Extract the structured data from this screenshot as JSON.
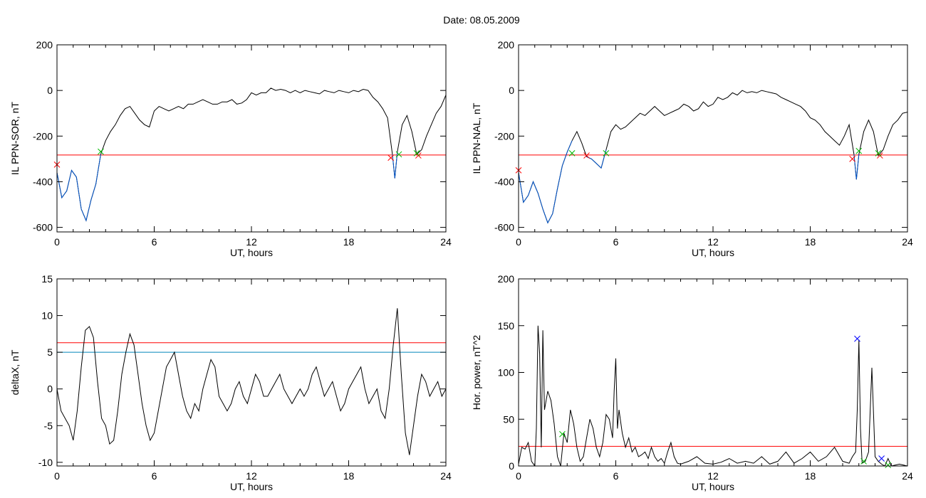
{
  "figure": {
    "title": "Date:  08.05.2009"
  },
  "chart_data": [
    {
      "id": "p1",
      "type": "line",
      "xlabel": "UT, hours",
      "ylabel": "IL PPN-SOR, nT",
      "xlim": [
        0,
        24
      ],
      "ylim": [
        -620,
        200
      ],
      "xticks": [
        0,
        6,
        12,
        18,
        24
      ],
      "yticks": [
        -600,
        -400,
        -200,
        0,
        200
      ],
      "threshold_lines": [
        {
          "y": -283,
          "color": "#ff0000"
        }
      ],
      "series": [
        {
          "color": "#000000",
          "x": [
            0,
            0.3,
            0.6,
            0.9,
            1.2,
            1.5,
            1.8,
            2.1,
            2.4,
            2.7,
            3.0,
            3.3,
            3.6,
            3.9,
            4.2,
            4.5,
            4.8,
            5.1,
            5.4,
            5.7,
            6.0,
            6.3,
            6.6,
            6.9,
            7.2,
            7.5,
            7.8,
            8.1,
            8.4,
            8.7,
            9.0,
            9.3,
            9.6,
            9.9,
            10.2,
            10.5,
            10.8,
            11.1,
            11.4,
            11.7,
            12.0,
            12.3,
            12.6,
            12.9,
            13.2,
            13.5,
            13.8,
            14.1,
            14.4,
            14.7,
            15.0,
            15.3,
            15.6,
            15.9,
            16.2,
            16.5,
            16.8,
            17.1,
            17.4,
            17.7,
            18.0,
            18.3,
            18.6,
            18.9,
            19.2,
            19.5,
            19.8,
            20.1,
            20.4,
            20.7,
            20.85,
            21.0,
            21.3,
            21.6,
            21.9,
            22.2,
            22.5,
            22.8,
            23.1,
            23.4,
            23.7,
            24.0
          ],
          "y": [
            -360,
            -470,
            -440,
            -350,
            -380,
            -520,
            -570,
            -480,
            -410,
            -280,
            -220,
            -180,
            -150,
            -110,
            -80,
            -70,
            -100,
            -130,
            -150,
            -160,
            -90,
            -70,
            -80,
            -90,
            -80,
            -70,
            -80,
            -60,
            -60,
            -50,
            -40,
            -50,
            -60,
            -60,
            -50,
            -50,
            -40,
            -60,
            -55,
            -40,
            -10,
            -20,
            -10,
            -10,
            10,
            0,
            5,
            0,
            -10,
            0,
            -10,
            0,
            -5,
            -10,
            -15,
            0,
            -5,
            -10,
            0,
            -5,
            -10,
            0,
            -5,
            5,
            0,
            -30,
            -50,
            -80,
            -120,
            -280,
            -385,
            -270,
            -150,
            -110,
            -180,
            -280,
            -260,
            -200,
            -150,
            -100,
            -70,
            -20
          ]
        },
        {
          "color": "#0055cc",
          "x": [
            0,
            0.3,
            0.6,
            0.9,
            1.2,
            1.5,
            1.8,
            2.1,
            2.4,
            2.7
          ],
          "y": [
            -360,
            -470,
            -440,
            -350,
            -380,
            -520,
            -570,
            -480,
            -410,
            -280
          ]
        },
        {
          "color": "#0055cc",
          "x": [
            20.7,
            20.85,
            21.0
          ],
          "y": [
            -280,
            -385,
            -270
          ]
        }
      ],
      "markers": [
        {
          "x": 0.0,
          "y": -325,
          "color": "#ff0000"
        },
        {
          "x": 2.7,
          "y": -268,
          "color": "#00bb00"
        },
        {
          "x": 20.6,
          "y": -295,
          "color": "#ff0000"
        },
        {
          "x": 21.1,
          "y": -280,
          "color": "#00bb00"
        },
        {
          "x": 22.3,
          "y": -285,
          "color": "#ff0000"
        },
        {
          "x": 22.2,
          "y": -275,
          "color": "#00bb00"
        }
      ]
    },
    {
      "id": "p2",
      "type": "line",
      "xlabel": "UT, hours",
      "ylabel": "IL PPN-NAL, nT",
      "xlim": [
        0,
        24
      ],
      "ylim": [
        -620,
        200
      ],
      "xticks": [
        0,
        6,
        12,
        18,
        24
      ],
      "yticks": [
        -600,
        -400,
        -200,
        0,
        200
      ],
      "threshold_lines": [
        {
          "y": -283,
          "color": "#ff0000"
        }
      ],
      "series": [
        {
          "color": "#000000",
          "x": [
            0,
            0.3,
            0.6,
            0.9,
            1.2,
            1.5,
            1.8,
            2.1,
            2.4,
            2.7,
            3.0,
            3.3,
            3.6,
            3.9,
            4.2,
            4.5,
            4.8,
            5.1,
            5.4,
            5.7,
            6.0,
            6.3,
            6.6,
            6.9,
            7.2,
            7.5,
            7.8,
            8.1,
            8.4,
            8.7,
            9.0,
            9.3,
            9.6,
            9.9,
            10.2,
            10.5,
            10.8,
            11.1,
            11.4,
            11.7,
            12.0,
            12.3,
            12.6,
            12.9,
            13.2,
            13.5,
            13.8,
            14.1,
            14.4,
            14.7,
            15.0,
            15.3,
            15.6,
            15.9,
            16.2,
            16.5,
            16.8,
            17.1,
            17.4,
            17.7,
            18.0,
            18.3,
            18.6,
            18.9,
            19.2,
            19.5,
            19.8,
            20.1,
            20.4,
            20.7,
            20.85,
            21.0,
            21.3,
            21.6,
            21.9,
            22.2,
            22.5,
            22.8,
            23.1,
            23.4,
            23.7,
            24.0
          ],
          "y": [
            -360,
            -490,
            -460,
            -400,
            -450,
            -520,
            -580,
            -540,
            -430,
            -330,
            -270,
            -220,
            -180,
            -230,
            -290,
            -300,
            -320,
            -340,
            -260,
            -180,
            -150,
            -170,
            -160,
            -140,
            -120,
            -100,
            -110,
            -90,
            -70,
            -90,
            -110,
            -100,
            -90,
            -80,
            -60,
            -70,
            -90,
            -80,
            -50,
            -70,
            -60,
            -30,
            -40,
            -30,
            -10,
            -20,
            0,
            -10,
            -5,
            -10,
            0,
            -5,
            -10,
            -15,
            -30,
            -40,
            -50,
            -60,
            -70,
            -90,
            -120,
            -130,
            -150,
            -180,
            -200,
            -220,
            -240,
            -200,
            -150,
            -280,
            -390,
            -280,
            -180,
            -130,
            -180,
            -285,
            -260,
            -200,
            -150,
            -130,
            -100,
            -95
          ]
        },
        {
          "color": "#0055cc",
          "x": [
            0,
            0.3,
            0.6,
            0.9,
            1.2,
            1.5,
            1.8,
            2.1,
            2.4,
            2.7,
            3.0,
            3.3
          ],
          "y": [
            -360,
            -490,
            -460,
            -400,
            -450,
            -520,
            -580,
            -540,
            -430,
            -330,
            -270,
            -220
          ]
        },
        {
          "color": "#0055cc",
          "x": [
            4.2,
            4.5,
            4.8,
            5.1,
            5.4
          ],
          "y": [
            -290,
            -300,
            -320,
            -340,
            -260
          ]
        },
        {
          "color": "#0055cc",
          "x": [
            20.7,
            20.85,
            21.0
          ],
          "y": [
            -280,
            -390,
            -280
          ]
        }
      ],
      "markers": [
        {
          "x": 0.0,
          "y": -350,
          "color": "#ff0000"
        },
        {
          "x": 3.3,
          "y": -275,
          "color": "#00bb00"
        },
        {
          "x": 4.2,
          "y": -285,
          "color": "#ff0000"
        },
        {
          "x": 5.4,
          "y": -275,
          "color": "#00bb00"
        },
        {
          "x": 20.6,
          "y": -300,
          "color": "#ff0000"
        },
        {
          "x": 21.0,
          "y": -265,
          "color": "#00bb00"
        },
        {
          "x": 22.3,
          "y": -285,
          "color": "#ff0000"
        },
        {
          "x": 22.2,
          "y": -275,
          "color": "#00bb00"
        }
      ]
    },
    {
      "id": "p3",
      "type": "line",
      "xlabel": "UT, hours",
      "ylabel": "deltaX, nT",
      "xlim": [
        0,
        24
      ],
      "ylim": [
        -10.5,
        15
      ],
      "xticks": [
        0,
        6,
        12,
        18,
        24
      ],
      "yticks": [
        -10,
        -5,
        0,
        5,
        10,
        15
      ],
      "threshold_lines": [
        {
          "y": 6.3,
          "color": "#ff0000"
        },
        {
          "y": 5.0,
          "color": "#0088bb"
        }
      ],
      "series": [
        {
          "color": "#000000",
          "x": [
            0,
            0.25,
            0.5,
            0.75,
            1.0,
            1.25,
            1.5,
            1.75,
            2.0,
            2.25,
            2.5,
            2.75,
            3.0,
            3.25,
            3.5,
            3.75,
            4.0,
            4.25,
            4.5,
            4.75,
            5.0,
            5.25,
            5.5,
            5.75,
            6.0,
            6.25,
            6.5,
            6.75,
            7.0,
            7.25,
            7.5,
            7.75,
            8.0,
            8.25,
            8.5,
            8.75,
            9.0,
            9.25,
            9.5,
            9.75,
            10.0,
            10.25,
            10.5,
            10.75,
            11.0,
            11.25,
            11.5,
            11.75,
            12.0,
            12.25,
            12.5,
            12.75,
            13.0,
            13.25,
            13.5,
            13.75,
            14.0,
            14.25,
            14.5,
            14.75,
            15.0,
            15.25,
            15.5,
            15.75,
            16.0,
            16.25,
            16.5,
            16.75,
            17.0,
            17.25,
            17.5,
            17.75,
            18.0,
            18.25,
            18.5,
            18.75,
            19.0,
            19.25,
            19.5,
            19.75,
            20.0,
            20.25,
            20.5,
            20.75,
            21.0,
            21.25,
            21.5,
            21.75,
            22.0,
            22.25,
            22.5,
            22.75,
            23.0,
            23.25,
            23.5,
            23.75,
            24.0
          ],
          "y": [
            0,
            -3,
            -4,
            -5,
            -7,
            -3,
            3,
            8,
            8.5,
            7,
            1,
            -4,
            -5,
            -7.5,
            -7,
            -3,
            2,
            5,
            7.5,
            6,
            2,
            -2,
            -5,
            -7,
            -6,
            -3,
            0,
            3,
            4,
            5,
            2,
            -1,
            -3,
            -4,
            -2,
            -3,
            0,
            2,
            4,
            3,
            -1,
            -2,
            -3,
            -2,
            0,
            1,
            -1,
            -2,
            0,
            2,
            1,
            -1,
            -1,
            0,
            1,
            2,
            0,
            -1,
            -2,
            -1,
            0,
            -1,
            0,
            2,
            3,
            1,
            -1,
            0,
            1,
            -1,
            -3,
            -2,
            0,
            1,
            2,
            3,
            0,
            -2,
            -1,
            0,
            -3,
            -4,
            0,
            6,
            11,
            2,
            -6,
            -9,
            -5,
            -1,
            2,
            1,
            -1,
            0,
            1,
            -1,
            0
          ]
        }
      ],
      "markers": []
    },
    {
      "id": "p4",
      "type": "line",
      "xlabel": "UT, hours",
      "ylabel": "Hor. power, nT^2",
      "xlim": [
        0,
        24
      ],
      "ylim": [
        0,
        200
      ],
      "xticks": [
        0,
        6,
        12,
        18,
        24
      ],
      "yticks": [
        0,
        50,
        100,
        150,
        200
      ],
      "threshold_lines": [
        {
          "y": 21,
          "color": "#ff0000"
        }
      ],
      "series": [
        {
          "color": "#000000",
          "x": [
            0,
            0.2,
            0.4,
            0.6,
            0.8,
            1.0,
            1.1,
            1.2,
            1.3,
            1.4,
            1.5,
            1.6,
            1.8,
            2.0,
            2.2,
            2.4,
            2.6,
            2.8,
            3.0,
            3.2,
            3.4,
            3.6,
            3.8,
            4.0,
            4.2,
            4.4,
            4.6,
            4.8,
            5.0,
            5.2,
            5.4,
            5.6,
            5.8,
            5.9,
            6.0,
            6.1,
            6.2,
            6.4,
            6.6,
            6.8,
            7.0,
            7.2,
            7.4,
            7.6,
            7.8,
            8.0,
            8.2,
            8.4,
            8.6,
            8.8,
            9.0,
            9.2,
            9.4,
            9.6,
            9.8,
            10.0,
            10.5,
            11.0,
            11.5,
            12.0,
            12.5,
            13.0,
            13.5,
            14.0,
            14.5,
            15.0,
            15.5,
            16.0,
            16.5,
            17.0,
            17.5,
            18.0,
            18.5,
            19.0,
            19.5,
            20.0,
            20.4,
            20.6,
            20.8,
            20.9,
            21.0,
            21.1,
            21.2,
            21.4,
            21.6,
            21.7,
            21.8,
            22.0,
            22.2,
            22.4,
            22.6,
            22.8,
            23.0,
            23.5,
            24.0
          ],
          "y": [
            2,
            20,
            18,
            25,
            5,
            0,
            40,
            150,
            120,
            20,
            145,
            60,
            80,
            70,
            45,
            10,
            0,
            35,
            25,
            60,
            45,
            20,
            5,
            10,
            30,
            50,
            40,
            20,
            10,
            25,
            55,
            50,
            30,
            80,
            115,
            40,
            60,
            35,
            20,
            30,
            15,
            20,
            10,
            12,
            15,
            8,
            20,
            10,
            5,
            8,
            3,
            15,
            25,
            10,
            3,
            2,
            5,
            10,
            3,
            2,
            4,
            8,
            3,
            5,
            3,
            10,
            2,
            5,
            15,
            3,
            8,
            15,
            5,
            10,
            20,
            5,
            3,
            10,
            15,
            60,
            135,
            40,
            3,
            5,
            15,
            60,
            105,
            10,
            5,
            2,
            0,
            8,
            0,
            2,
            0
          ]
        }
      ],
      "markers": [
        {
          "x": 2.7,
          "y": 34,
          "color": "#00bb00"
        },
        {
          "x": 20.9,
          "y": 136,
          "color": "#0000ff"
        },
        {
          "x": 21.3,
          "y": 5,
          "color": "#00bb00"
        },
        {
          "x": 22.4,
          "y": 8,
          "color": "#0000ff"
        },
        {
          "x": 22.8,
          "y": 1,
          "color": "#00bb00"
        }
      ]
    }
  ]
}
